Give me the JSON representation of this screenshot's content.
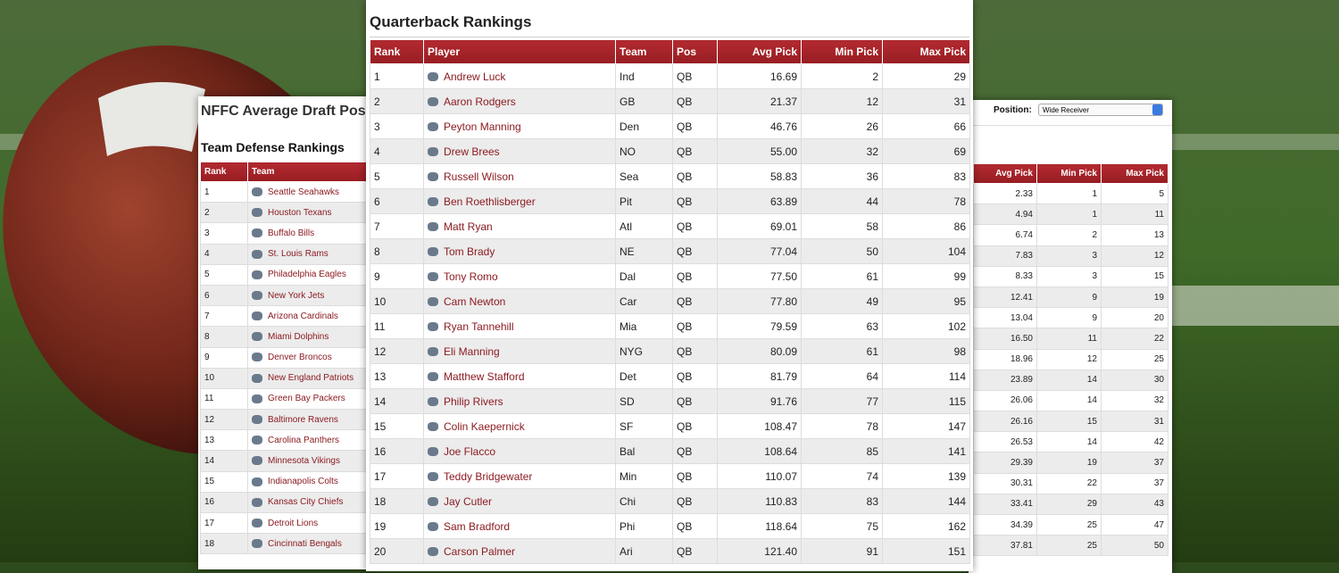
{
  "defense": {
    "page_title": "NFFC Average Draft Pos",
    "title": "Team Defense Rankings",
    "headers": [
      "Rank",
      "Team"
    ],
    "rows": [
      [
        "1",
        "Seattle Seahawks"
      ],
      [
        "2",
        "Houston Texans"
      ],
      [
        "3",
        "Buffalo Bills"
      ],
      [
        "4",
        "St. Louis Rams"
      ],
      [
        "5",
        "Philadelphia Eagles"
      ],
      [
        "6",
        "New York Jets"
      ],
      [
        "7",
        "Arizona Cardinals"
      ],
      [
        "8",
        "Miami Dolphins"
      ],
      [
        "9",
        "Denver Broncos"
      ],
      [
        "10",
        "New England Patriots"
      ],
      [
        "11",
        "Green Bay Packers"
      ],
      [
        "12",
        "Baltimore Ravens"
      ],
      [
        "13",
        "Carolina Panthers"
      ],
      [
        "14",
        "Minnesota Vikings"
      ],
      [
        "15",
        "Indianapolis Colts"
      ],
      [
        "16",
        "Kansas City Chiefs"
      ],
      [
        "17",
        "Detroit Lions"
      ],
      [
        "18",
        "Cincinnati Bengals"
      ]
    ]
  },
  "receivers": {
    "position_label": "Position:",
    "position_value": "Wide Receiver",
    "headers": [
      "Avg Pick",
      "Min Pick",
      "Max Pick"
    ],
    "rows": [
      [
        "2.33",
        "1",
        "5"
      ],
      [
        "4.94",
        "1",
        "11"
      ],
      [
        "6.74",
        "2",
        "13"
      ],
      [
        "7.83",
        "3",
        "12"
      ],
      [
        "8.33",
        "3",
        "15"
      ],
      [
        "12.41",
        "9",
        "19"
      ],
      [
        "13.04",
        "9",
        "20"
      ],
      [
        "16.50",
        "11",
        "22"
      ],
      [
        "18.96",
        "12",
        "25"
      ],
      [
        "23.89",
        "14",
        "30"
      ],
      [
        "26.06",
        "14",
        "32"
      ],
      [
        "26.16",
        "15",
        "31"
      ],
      [
        "26.53",
        "14",
        "42"
      ],
      [
        "29.39",
        "19",
        "37"
      ],
      [
        "30.31",
        "22",
        "37"
      ],
      [
        "33.41",
        "29",
        "43"
      ],
      [
        "34.39",
        "25",
        "47"
      ],
      [
        "37.81",
        "25",
        "50"
      ]
    ]
  },
  "quarterbacks": {
    "title": "Quarterback Rankings",
    "headers": [
      "Rank",
      "Player",
      "Team",
      "Pos",
      "Avg Pick",
      "Min Pick",
      "Max Pick"
    ],
    "rows": [
      [
        "1",
        "Andrew Luck",
        "Ind",
        "QB",
        "16.69",
        "2",
        "29"
      ],
      [
        "2",
        "Aaron Rodgers",
        "GB",
        "QB",
        "21.37",
        "12",
        "31"
      ],
      [
        "3",
        "Peyton Manning",
        "Den",
        "QB",
        "46.76",
        "26",
        "66"
      ],
      [
        "4",
        "Drew Brees",
        "NO",
        "QB",
        "55.00",
        "32",
        "69"
      ],
      [
        "5",
        "Russell Wilson",
        "Sea",
        "QB",
        "58.83",
        "36",
        "83"
      ],
      [
        "6",
        "Ben Roethlisberger",
        "Pit",
        "QB",
        "63.89",
        "44",
        "78"
      ],
      [
        "7",
        "Matt Ryan",
        "Atl",
        "QB",
        "69.01",
        "58",
        "86"
      ],
      [
        "8",
        "Tom Brady",
        "NE",
        "QB",
        "77.04",
        "50",
        "104"
      ],
      [
        "9",
        "Tony Romo",
        "Dal",
        "QB",
        "77.50",
        "61",
        "99"
      ],
      [
        "10",
        "Cam Newton",
        "Car",
        "QB",
        "77.80",
        "49",
        "95"
      ],
      [
        "11",
        "Ryan Tannehill",
        "Mia",
        "QB",
        "79.59",
        "63",
        "102"
      ],
      [
        "12",
        "Eli Manning",
        "NYG",
        "QB",
        "80.09",
        "61",
        "98"
      ],
      [
        "13",
        "Matthew Stafford",
        "Det",
        "QB",
        "81.79",
        "64",
        "114"
      ],
      [
        "14",
        "Philip Rivers",
        "SD",
        "QB",
        "91.76",
        "77",
        "115"
      ],
      [
        "15",
        "Colin Kaepernick",
        "SF",
        "QB",
        "108.47",
        "78",
        "147"
      ],
      [
        "16",
        "Joe Flacco",
        "Bal",
        "QB",
        "108.64",
        "85",
        "141"
      ],
      [
        "17",
        "Teddy Bridgewater",
        "Min",
        "QB",
        "110.07",
        "74",
        "139"
      ],
      [
        "18",
        "Jay Cutler",
        "Chi",
        "QB",
        "110.83",
        "83",
        "144"
      ],
      [
        "19",
        "Sam Bradford",
        "Phi",
        "QB",
        "118.64",
        "75",
        "162"
      ],
      [
        "20",
        "Carson Palmer",
        "Ari",
        "QB",
        "121.40",
        "91",
        "151"
      ]
    ]
  }
}
